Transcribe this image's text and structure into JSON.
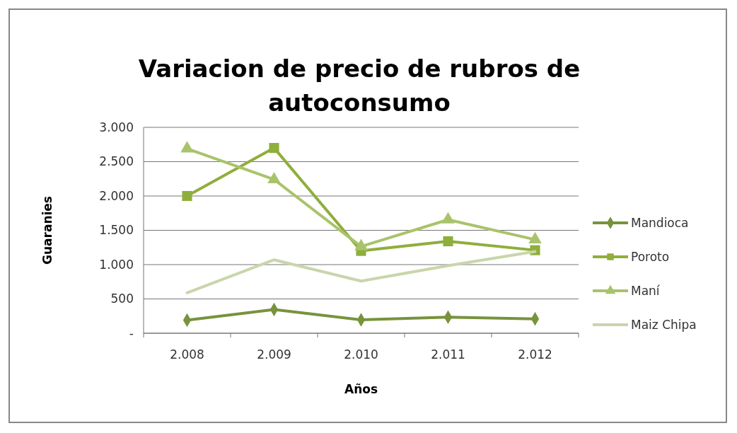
{
  "chart_data": {
    "type": "line",
    "title": "Variacion de precio de rubros de autoconsumo",
    "xlabel": "Años",
    "ylabel": "Guaranies",
    "categories": [
      "2.008",
      "2.009",
      "2.010",
      "2.011",
      "2.012"
    ],
    "series": [
      {
        "name": "Mandioca",
        "color": "#77933c",
        "marker": "diamond",
        "values": [
          190,
          345,
          195,
          235,
          210
        ]
      },
      {
        "name": "Poroto",
        "color": "#8fae3c",
        "marker": "square",
        "values": [
          2000,
          2700,
          1200,
          1340,
          1210
        ]
      },
      {
        "name": "Maní",
        "color": "#a9c36b",
        "marker": "triangle",
        "values": [
          2690,
          2240,
          1265,
          1655,
          1365
        ]
      },
      {
        "name": "Maiz Chipa",
        "color": "#c9d5ab",
        "marker": "none",
        "values": [
          590,
          1070,
          760,
          985,
          1190
        ]
      }
    ],
    "ylim": [
      0,
      3000
    ],
    "yticks": [
      {
        "value": 0,
        "label": "-"
      },
      {
        "value": 500,
        "label": "500"
      },
      {
        "value": 1000,
        "label": "1.000"
      },
      {
        "value": 1500,
        "label": "1.500"
      },
      {
        "value": 2000,
        "label": "2.000"
      },
      {
        "value": 2500,
        "label": "2.500"
      },
      {
        "value": 3000,
        "label": "3.000"
      }
    ],
    "grid": "y",
    "legend": "right"
  }
}
